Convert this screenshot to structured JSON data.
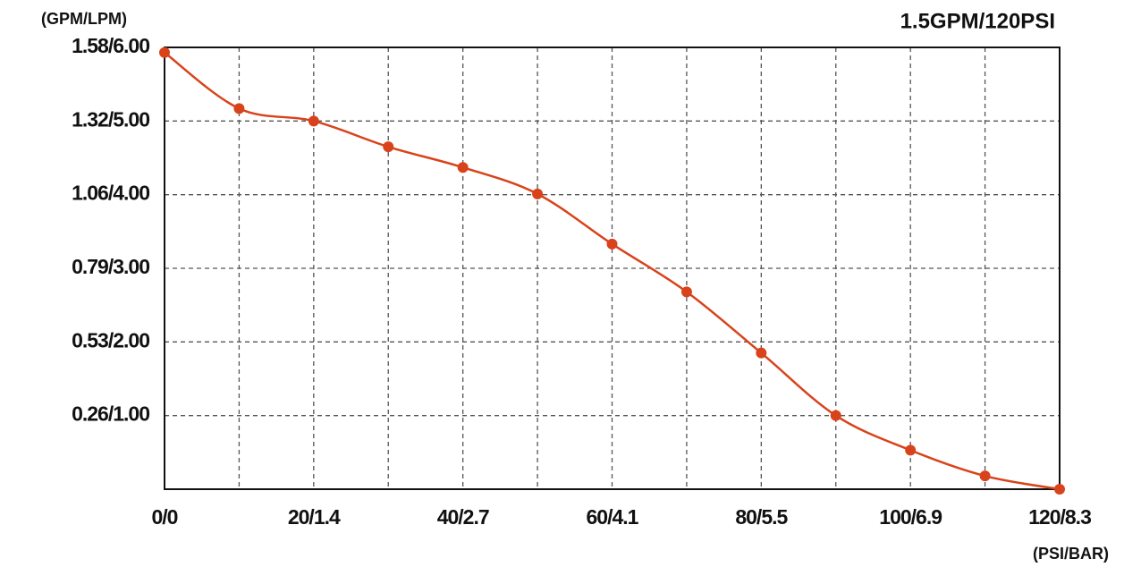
{
  "chart_data": {
    "type": "line",
    "title": "1.5GPM/120PSI",
    "y_label": "(GPM/LPM)",
    "x_label": "(PSI/BAR)",
    "x": [
      0,
      10,
      20,
      30,
      40,
      50,
      60,
      70,
      80,
      90,
      100,
      110,
      120
    ],
    "series": [
      {
        "color": "#d8431b",
        "values": [
          5.93,
          5.17,
          5.0,
          4.65,
          4.37,
          4.01,
          3.33,
          2.68,
          1.85,
          1.0,
          0.53,
          0.18,
          0
        ]
      }
    ],
    "xlim": [
      0,
      120
    ],
    "xticks": [
      {
        "value": 0,
        "label": "0/0"
      },
      {
        "value": 10,
        "label": null
      },
      {
        "value": 20,
        "label": "20/1.4"
      },
      {
        "value": 30,
        "label": null
      },
      {
        "value": 40,
        "label": "40/2.7"
      },
      {
        "value": 50,
        "label": null
      },
      {
        "value": 60,
        "label": "60/4.1"
      },
      {
        "value": 70,
        "label": null
      },
      {
        "value": 80,
        "label": "80/5.5"
      },
      {
        "value": 90,
        "label": null
      },
      {
        "value": 100,
        "label": "100/6.9"
      },
      {
        "value": 110,
        "label": null
      },
      {
        "value": 120,
        "label": "120/8.3"
      }
    ],
    "ylim": [
      0,
      6
    ],
    "yticks": [
      {
        "value": 1,
        "label": "0.26/1.00"
      },
      {
        "value": 2,
        "label": "0.53/2.00"
      },
      {
        "value": 3,
        "label": "0.79/3.00"
      },
      {
        "value": 4,
        "label": "1.06/4.00"
      },
      {
        "value": 5,
        "label": "1.32/5.00"
      },
      {
        "value": 6,
        "label": "1.58/6.00"
      }
    ],
    "grid": true,
    "smooth": true
  }
}
